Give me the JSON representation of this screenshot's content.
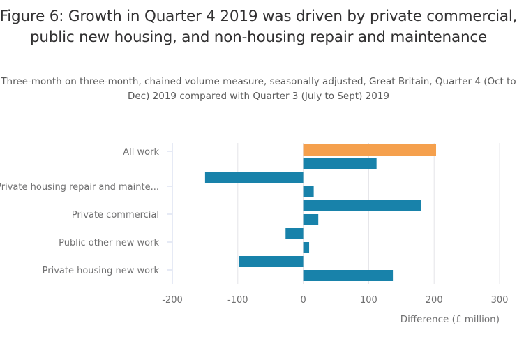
{
  "chart_data": {
    "type": "bar",
    "orientation": "horizontal",
    "title": "Figure 6: Growth in Quarter 4 2019 was driven by private commercial, public new housing, and non-housing repair and maintenance",
    "subtitle": "Three-month on three-month, chained volume measure, seasonally adjusted, Great Britain, Quarter 4 (Oct to Dec) 2019 compared with Quarter 3 (July to Sept) 2019",
    "xlabel": "Difference (£ million)",
    "ylabel": "",
    "xlim": [
      -200,
      300
    ],
    "xticks": [
      -200,
      -100,
      0,
      100,
      200,
      300
    ],
    "xtick_labels": [
      "-200",
      "-100",
      "0",
      "100",
      "200",
      "300"
    ],
    "grid": true,
    "categories": [
      "All work",
      "",
      "Private housing repair and mainte...",
      "",
      "Private commercial",
      "",
      "Public other new work",
      "",
      "Private housing new work",
      ""
    ],
    "values": [
      203,
      112,
      -150,
      16,
      180,
      23,
      -27,
      9,
      -98,
      137
    ],
    "highlight_index": 0,
    "colors": {
      "highlight": "#F5A04D",
      "default": "#1882AA"
    }
  },
  "page": {
    "clipped_text": "…"
  }
}
